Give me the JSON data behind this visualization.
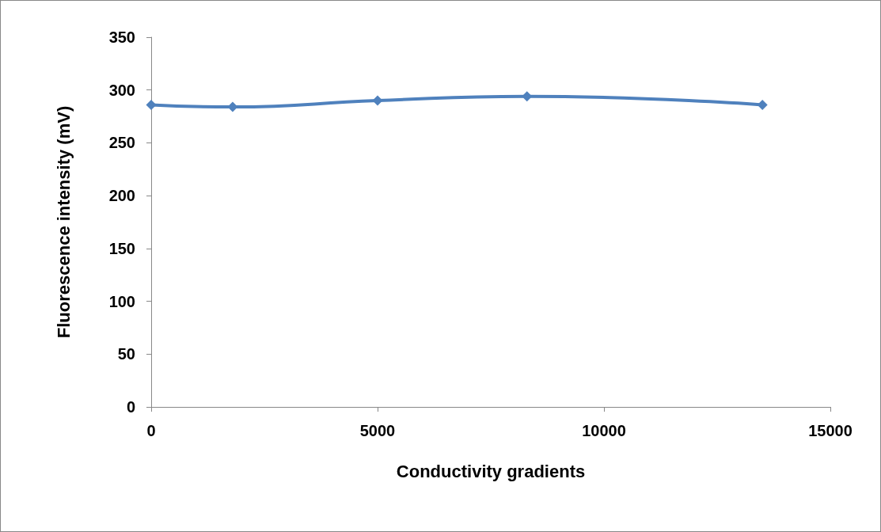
{
  "chart_data": {
    "type": "line",
    "xlabel": "Conductivity gradients",
    "ylabel": "Fluorescence intensity (mV)",
    "x": [
      0,
      1800,
      5000,
      8300,
      13500
    ],
    "series": [
      {
        "color": "#4f81bd",
        "values": [
          286,
          284,
          290,
          294,
          286
        ]
      }
    ],
    "xlim": [
      0,
      15000
    ],
    "xticks": [
      0,
      5000,
      10000,
      15000
    ],
    "ylim": [
      0,
      350
    ],
    "yticks": [
      0,
      50,
      100,
      150,
      200,
      250,
      300,
      350
    ],
    "grid": false,
    "marker": "diamond",
    "line_style": "solid"
  }
}
